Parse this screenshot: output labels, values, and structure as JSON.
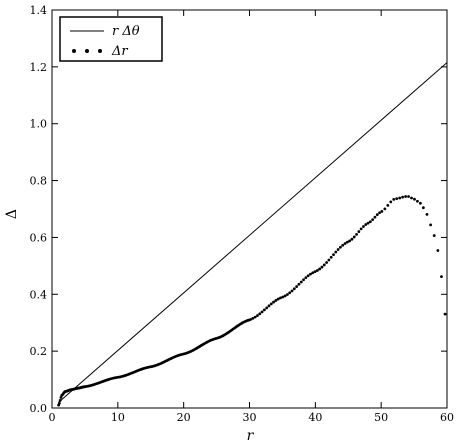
{
  "chart_data": {
    "type": "line",
    "xlabel": "r",
    "ylabel": "Δ",
    "xlim": [
      0,
      60
    ],
    "ylim": [
      0,
      1.4
    ],
    "xticks": [
      0,
      10,
      20,
      30,
      40,
      50,
      60
    ],
    "xtick_labels": [
      "0",
      "10",
      "20",
      "30",
      "40",
      "50",
      "60"
    ],
    "yticks": [
      0.0,
      0.2,
      0.4,
      0.6,
      0.8,
      1.0,
      1.2,
      1.4
    ],
    "ytick_labels": [
      "0.0",
      "0.2",
      "0.4",
      "0.6",
      "0.8",
      "1.0",
      "1.2",
      "1.4"
    ],
    "grid": false,
    "legend_position": "top-left",
    "series": [
      {
        "name": "r Δθ",
        "style": "solid-line",
        "color": "#000000",
        "x": [
          1,
          60
        ],
        "y": [
          0.02,
          1.215
        ]
      },
      {
        "name": "Δr",
        "style": "dots",
        "color": "#000000",
        "x": [
          1,
          1.5,
          2,
          3,
          4,
          5,
          10,
          15,
          20,
          25,
          30,
          35,
          40,
          45,
          48,
          50,
          52,
          54,
          55,
          56,
          57,
          58,
          58.5,
          59,
          59.3,
          59.6,
          59.9
        ],
        "y": [
          0.01,
          0.045,
          0.058,
          0.065,
          0.07,
          0.075,
          0.108,
          0.145,
          0.19,
          0.245,
          0.31,
          0.39,
          0.48,
          0.585,
          0.65,
          0.69,
          0.735,
          0.745,
          0.735,
          0.72,
          0.68,
          0.61,
          0.565,
          0.5,
          0.43,
          0.36,
          0.27
        ]
      }
    ]
  }
}
